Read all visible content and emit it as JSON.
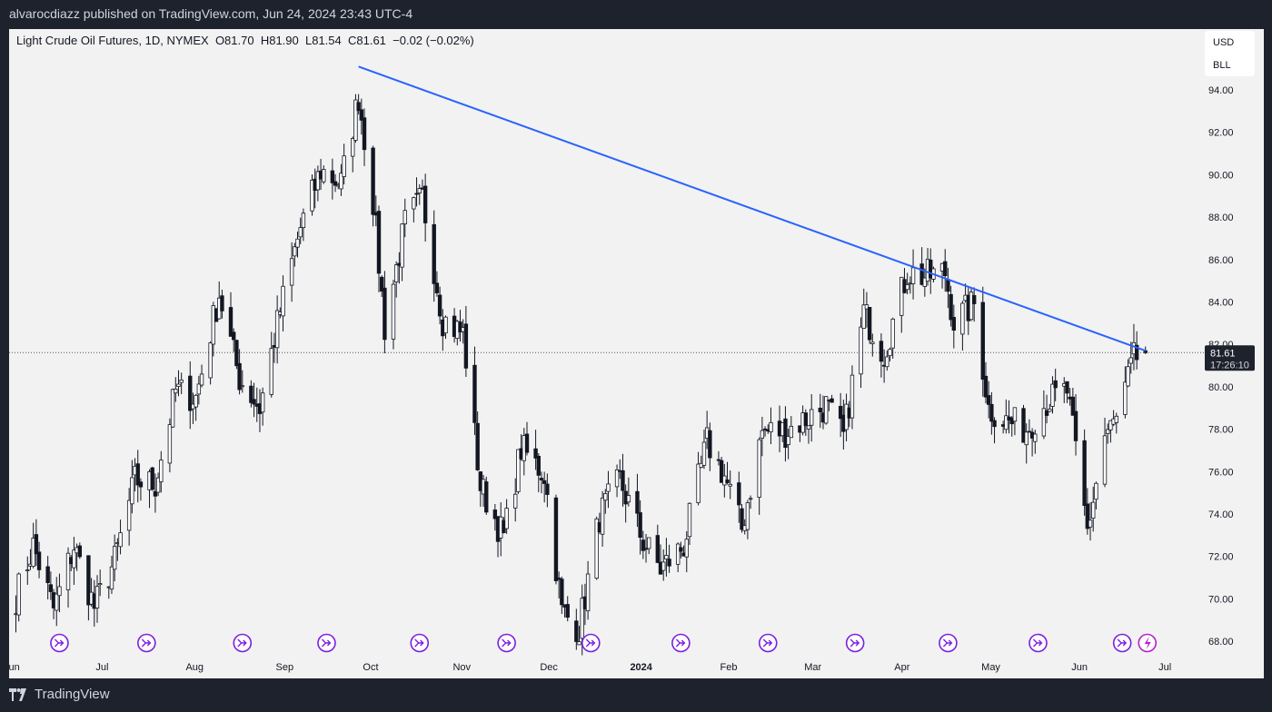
{
  "header": {
    "published": "alvarocdiazz published on TradingView.com, Jun 24, 2024 23:43 UTC-4"
  },
  "legend": {
    "symbol": "Light Crude Oil Futures, 1D, NYMEX",
    "open": "O81.70",
    "high": "H81.90",
    "low": "L81.54",
    "close": "C81.61",
    "change": "−0.02 (−0.02%)"
  },
  "units": {
    "currency": "USD",
    "unit": "BLL"
  },
  "footer": {
    "brand": "TradingView"
  },
  "colors": {
    "trendline": "#2962ff",
    "marker": "#7b1fe0",
    "up_body": "#ffffff",
    "down_body": "#131722",
    "background": "#f2f2f2"
  },
  "chart_data": {
    "type": "candlestick",
    "title": "Light Crude Oil Futures, 1D, NYMEX",
    "ylim": [
      67.5,
      96
    ],
    "y_ticks": [
      "94.00",
      "92.00",
      "90.00",
      "88.00",
      "86.00",
      "84.00",
      "82.00",
      "80.00",
      "78.00",
      "76.00",
      "74.00",
      "72.00",
      "70.00",
      "68.00"
    ],
    "x_ticks": [
      {
        "label": "un",
        "date": "2023-06-01"
      },
      {
        "label": "Jul",
        "date": "2023-07-01"
      },
      {
        "label": "Aug",
        "date": "2023-08-01"
      },
      {
        "label": "Sep",
        "date": "2023-09-01"
      },
      {
        "label": "Oct",
        "date": "2023-10-01"
      },
      {
        "label": "Nov",
        "date": "2023-11-01"
      },
      {
        "label": "Dec",
        "date": "2023-12-01"
      },
      {
        "label": "2024",
        "date": "2024-01-01",
        "bold": true
      },
      {
        "label": "Feb",
        "date": "2024-02-01"
      },
      {
        "label": "Mar",
        "date": "2024-03-01"
      },
      {
        "label": "Apr",
        "date": "2024-04-01"
      },
      {
        "label": "May",
        "date": "2024-05-01"
      },
      {
        "label": "Jun",
        "date": "2024-06-01"
      },
      {
        "label": "Jul",
        "date": "2024-07-01"
      }
    ],
    "key_closes": [
      [
        "2023-06-01",
        70.1
      ],
      [
        "2023-06-07",
        72.5
      ],
      [
        "2023-06-14",
        69.5
      ],
      [
        "2023-06-21",
        72.5
      ],
      [
        "2023-06-28",
        69.6
      ],
      [
        "2023-07-05",
        71.8
      ],
      [
        "2023-07-12",
        75.6
      ],
      [
        "2023-07-19",
        75.4
      ],
      [
        "2023-07-26",
        79.8
      ],
      [
        "2023-08-02",
        79.5
      ],
      [
        "2023-08-10",
        84.4
      ],
      [
        "2023-08-17",
        80.4
      ],
      [
        "2023-08-24",
        79.0
      ],
      [
        "2023-08-31",
        83.6
      ],
      [
        "2023-09-07",
        87.5
      ],
      [
        "2023-09-14",
        90.2
      ],
      [
        "2023-09-21",
        89.6
      ],
      [
        "2023-09-27",
        93.7
      ],
      [
        "2023-10-02",
        88.8
      ],
      [
        "2023-10-06",
        82.8
      ],
      [
        "2023-10-13",
        87.7
      ],
      [
        "2023-10-19",
        88.9
      ],
      [
        "2023-10-26",
        83.2
      ],
      [
        "2023-11-02",
        82.5
      ],
      [
        "2023-11-08",
        75.3
      ],
      [
        "2023-11-16",
        72.9
      ],
      [
        "2023-11-22",
        77.1
      ],
      [
        "2023-11-30",
        75.9
      ],
      [
        "2023-12-06",
        69.4
      ],
      [
        "2023-12-12",
        68.6
      ],
      [
        "2023-12-19",
        73.9
      ],
      [
        "2023-12-26",
        75.6
      ],
      [
        "2024-01-03",
        72.7
      ],
      [
        "2024-01-09",
        71.4
      ],
      [
        "2024-01-17",
        72.5
      ],
      [
        "2024-01-25",
        77.4
      ],
      [
        "2024-01-31",
        75.8
      ],
      [
        "2024-02-06",
        73.3
      ],
      [
        "2024-02-13",
        77.9
      ],
      [
        "2024-02-21",
        77.9
      ],
      [
        "2024-02-28",
        78.5
      ],
      [
        "2024-03-06",
        79.1
      ],
      [
        "2024-03-12",
        77.6
      ],
      [
        "2024-03-19",
        83.5
      ],
      [
        "2024-03-26",
        81.6
      ],
      [
        "2024-04-03",
        85.4
      ],
      [
        "2024-04-09",
        85.2
      ],
      [
        "2024-04-16",
        85.4
      ],
      [
        "2024-04-19",
        83.1
      ],
      [
        "2024-04-26",
        83.9
      ],
      [
        "2024-05-01",
        79.0
      ],
      [
        "2024-05-07",
        78.4
      ],
      [
        "2024-05-14",
        78.0
      ],
      [
        "2024-05-21",
        79.3
      ],
      [
        "2024-05-28",
        79.8
      ],
      [
        "2024-06-04",
        73.2
      ],
      [
        "2024-06-10",
        77.7
      ],
      [
        "2024-06-14",
        78.4
      ],
      [
        "2024-06-20",
        81.3
      ],
      [
        "2024-06-24",
        81.61
      ]
    ],
    "last_candle": {
      "open": 81.7,
      "high": 81.9,
      "low": 81.54,
      "close": 81.61
    },
    "last_price_label": "81.61",
    "countdown": "17:26:10",
    "trendline": {
      "start": {
        "date": "2023-09-27",
        "price": 95.1
      },
      "end": {
        "date": "2024-06-24",
        "price": 81.7
      }
    },
    "event_markers": [
      "2023-06-16",
      "2023-07-16",
      "2023-08-18",
      "2023-09-16",
      "2023-10-18",
      "2023-11-17",
      "2023-12-16",
      "2024-01-16",
      "2024-02-15",
      "2024-03-16",
      "2024-04-17",
      "2024-05-18",
      "2024-06-16"
    ],
    "lightning_marker": "2024-06-24"
  }
}
